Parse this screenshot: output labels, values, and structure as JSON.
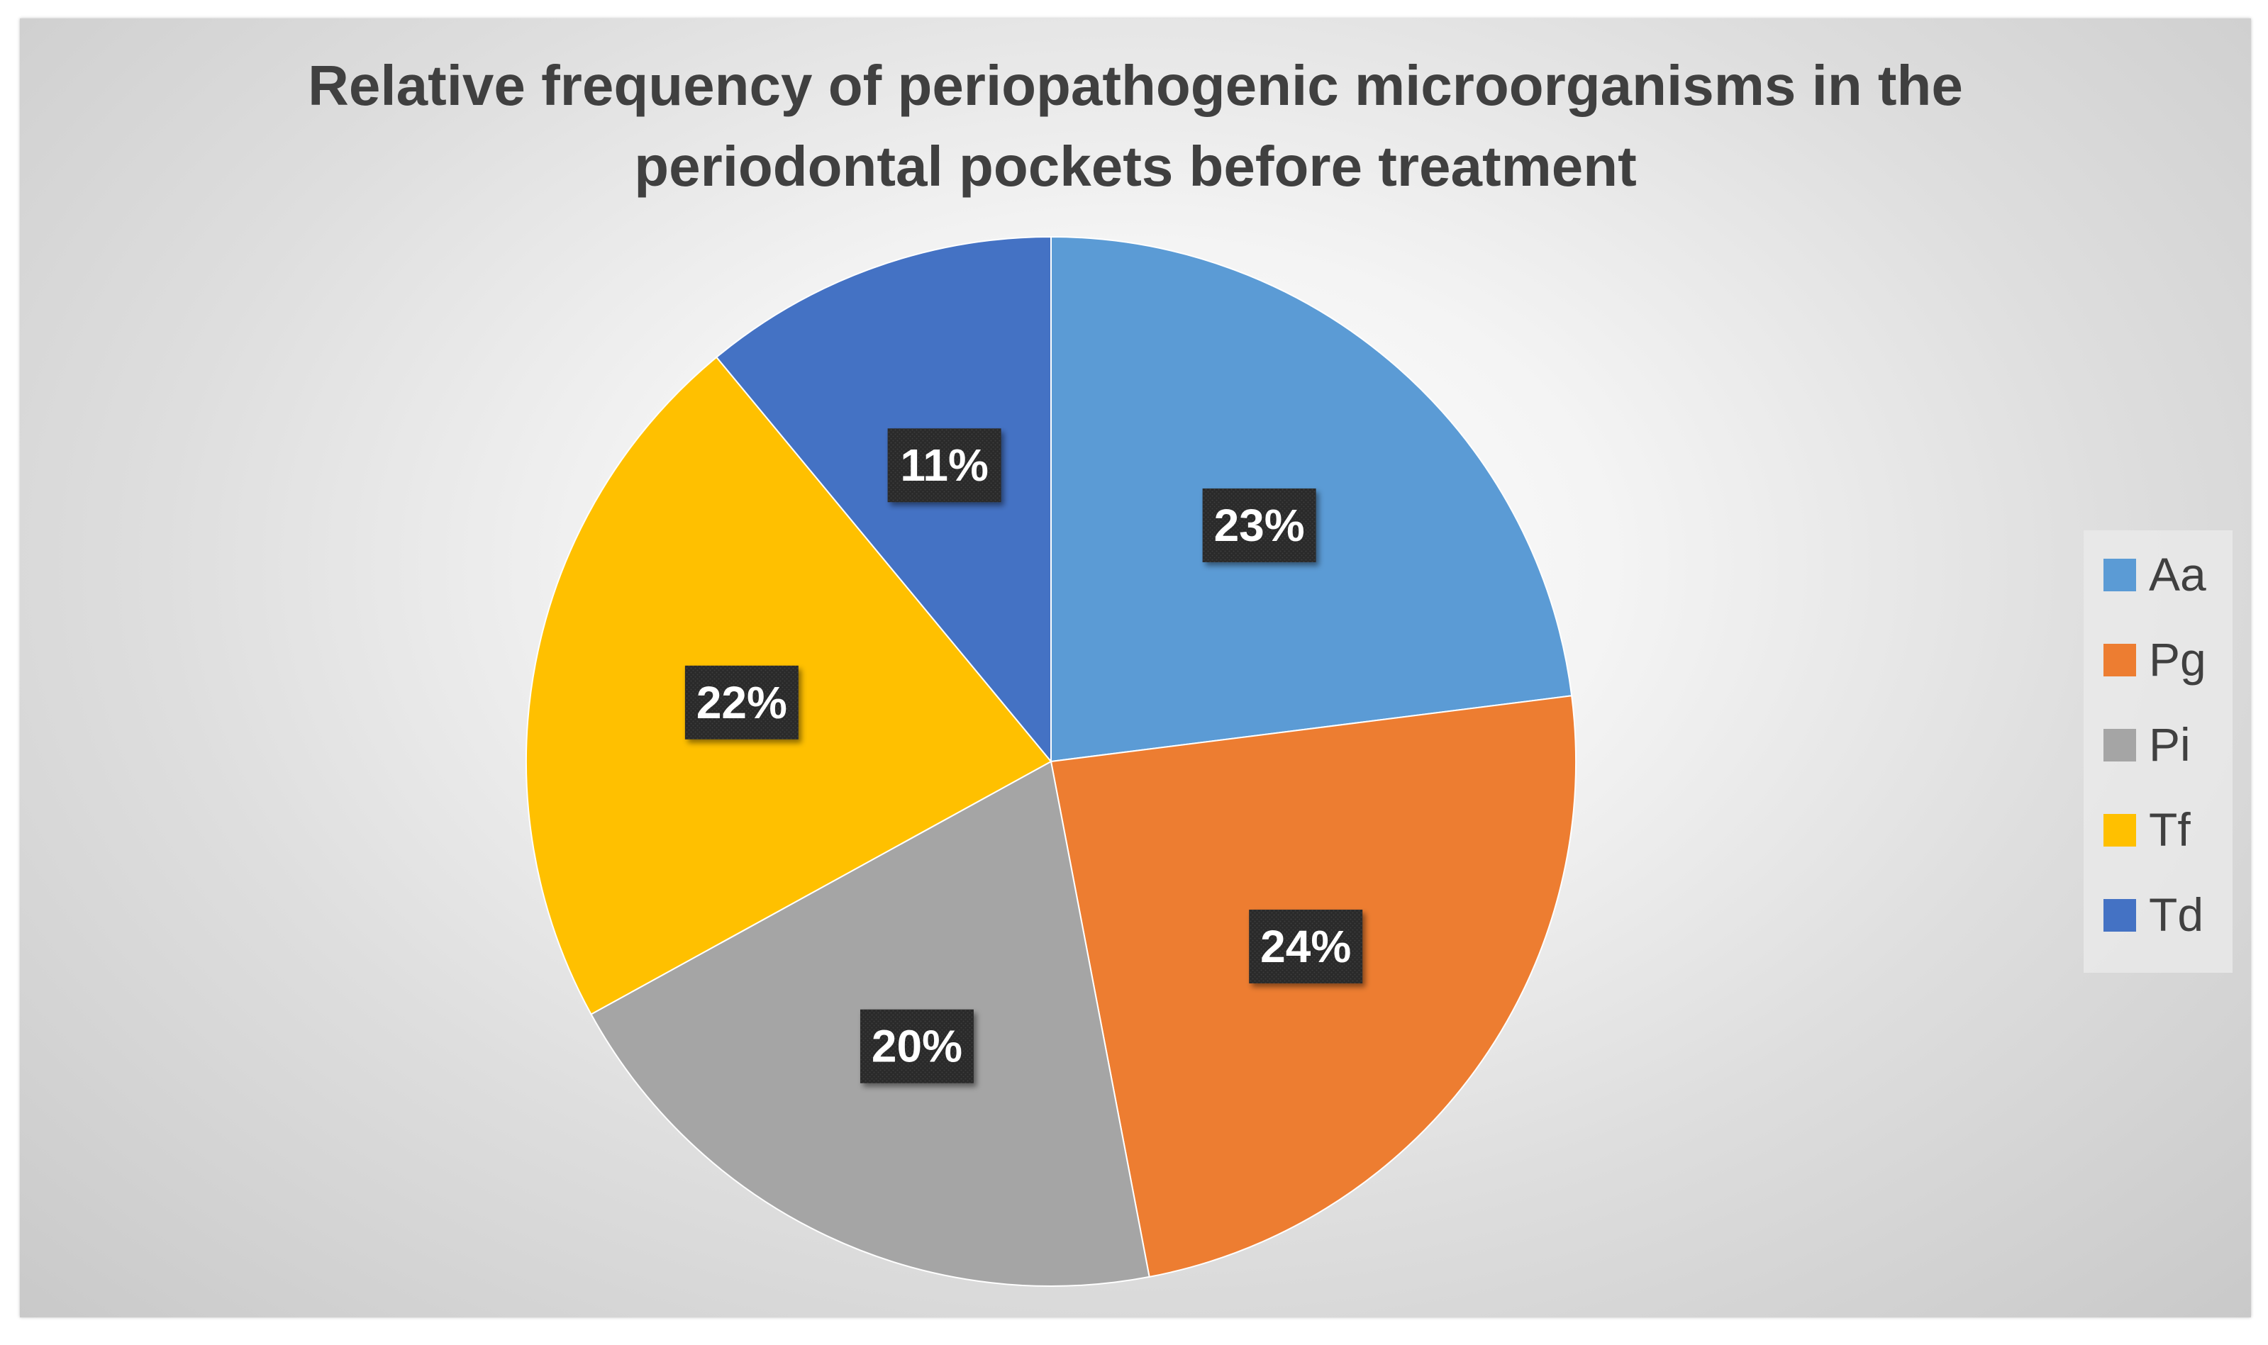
{
  "chart_data": {
    "type": "pie",
    "title": "Relative frequency of periopathogenic microorganisms in the periodontal pockets before treatment",
    "categories": [
      "Aa",
      "Pg",
      "Pi",
      "Tf",
      "Td"
    ],
    "values": [
      23,
      24,
      20,
      22,
      11
    ],
    "data_labels": [
      "23%",
      "24%",
      "20%",
      "22%",
      "11%"
    ],
    "colors": [
      "#5B9BD5",
      "#ED7D31",
      "#A5A5A5",
      "#FFC000",
      "#4472C4"
    ],
    "start_angle_deg": 0,
    "direction": "clockwise",
    "legend_position": "right",
    "data_label_style": "dark box, white bold text"
  }
}
